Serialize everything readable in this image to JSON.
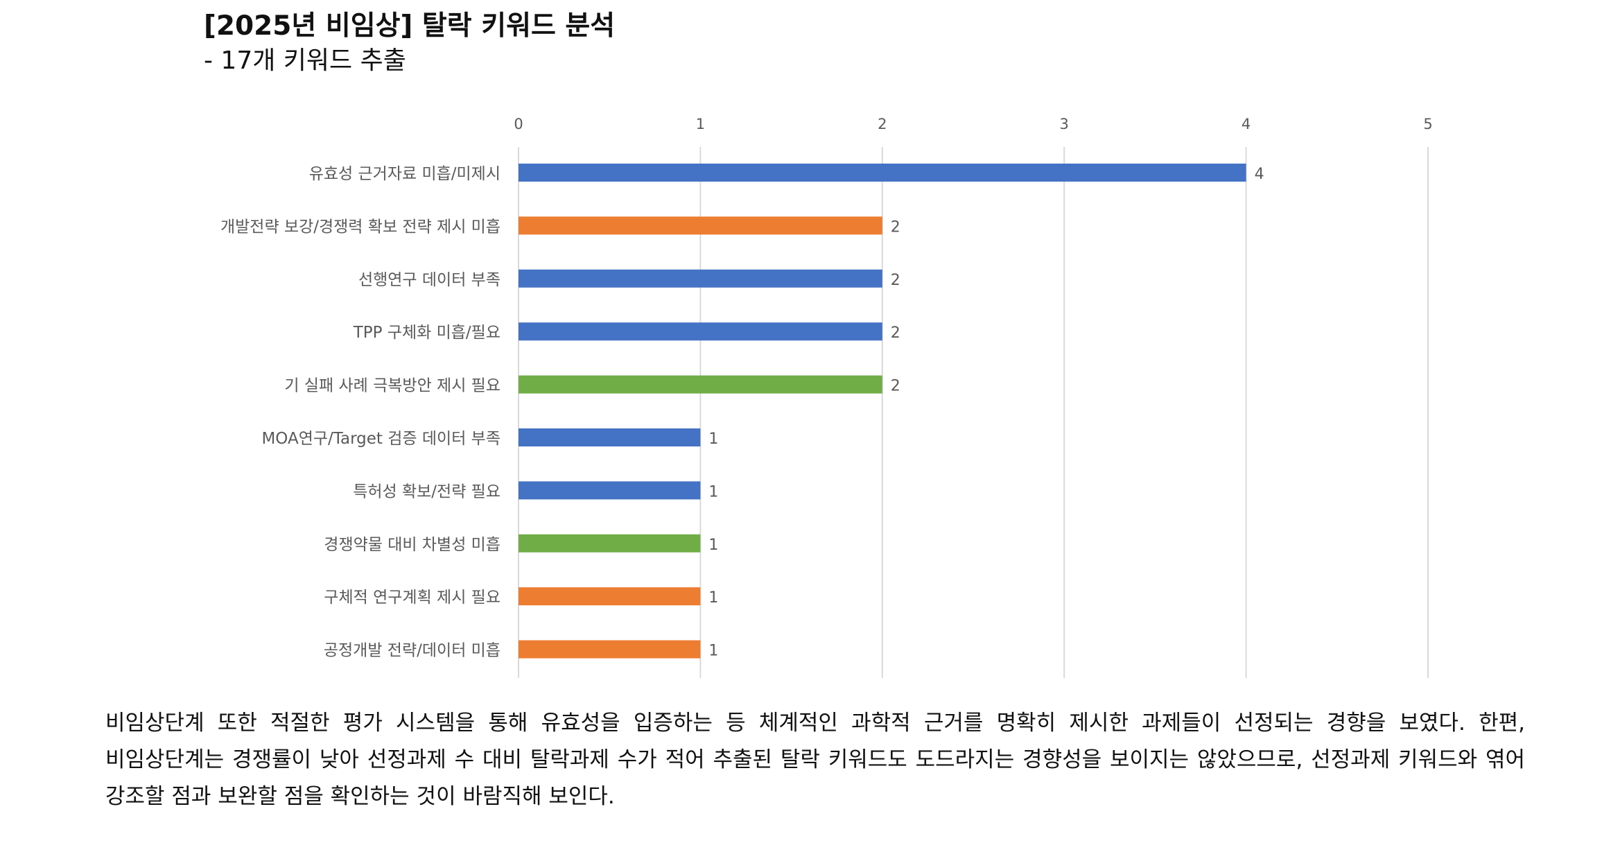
{
  "chart_data": {
    "type": "bar",
    "orientation": "horizontal",
    "title": "[2025년 비임상] 탈락 키워드 분석",
    "subtitle": "- 17개 키워드 추출",
    "xlabel": "",
    "ylabel": "",
    "xlim": [
      0,
      5
    ],
    "ticks": [
      "0",
      "1",
      "2",
      "3",
      "4",
      "5"
    ],
    "grid": true,
    "legend": "none",
    "categories": [
      "유효성 근거자료 미흡/미제시",
      "개발전략 보강/경쟁력 확보 전략 제시 미흡",
      "선행연구 데이터 부족",
      "TPP 구체화 미흡/필요",
      "기 실패 사례 극복방안 제시 필요",
      "MOA연구/Target 검증 데이터 부족",
      "특허성 확보/전략 필요",
      "경쟁약물 대비 차별성 미흡",
      "구체적 연구계획 제시 필요",
      "공정개발 전략/데이터 미흡"
    ],
    "values": [
      4,
      2,
      2,
      2,
      2,
      1,
      1,
      1,
      1,
      1
    ],
    "value_labels": [
      "4",
      "2",
      "2",
      "2",
      "2",
      "1",
      "1",
      "1",
      "1",
      "1"
    ],
    "bar_colors": [
      "#4472C4",
      "#ED7D31",
      "#4472C4",
      "#4472C4",
      "#70AD47",
      "#4472C4",
      "#4472C4",
      "#70AD47",
      "#ED7D31",
      "#ED7D31"
    ],
    "gridline_color": "#D9D9D9",
    "label_color": "#595959"
  },
  "paragraph": "비임상단계 또한 적절한 평가 시스템을 통해 유효성을 입증하는 등 체계적인 과학적 근거를 명확히 제시한 과제들이 선정되는 경향을 보였다. 한편, 비임상단계는 경쟁률이 낮아 선정과제 수 대비 탈락과제 수가 적어 추출된 탈락 키워드도 도드라지는 경향성을 보이지는 않았으므로, 선정과제 키워드와 엮어 강조할 점과 보완할 점을 확인하는 것이 바람직해 보인다."
}
